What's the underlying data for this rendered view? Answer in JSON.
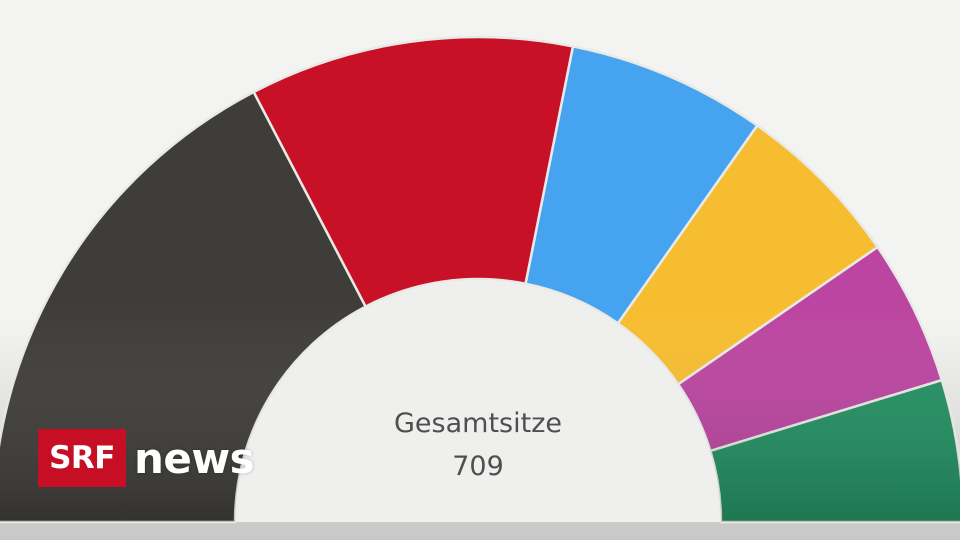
{
  "chart_data": {
    "type": "hemicycle",
    "total_label": "Gesamtsitze",
    "total_value": "709",
    "series": [
      {
        "value": 246,
        "color": "#3f3d39"
      },
      {
        "value": 153,
        "color": "#c81126"
      },
      {
        "value": 94,
        "color": "#45a3f0"
      },
      {
        "value": 80,
        "color": "#f7bd30"
      },
      {
        "value": 69,
        "color": "#bb45a0"
      },
      {
        "value": 67,
        "color": "#239062"
      }
    ]
  },
  "brand": {
    "logo_box_text": "SRF",
    "logo_word": "news",
    "logo_color": "#c60f24"
  }
}
